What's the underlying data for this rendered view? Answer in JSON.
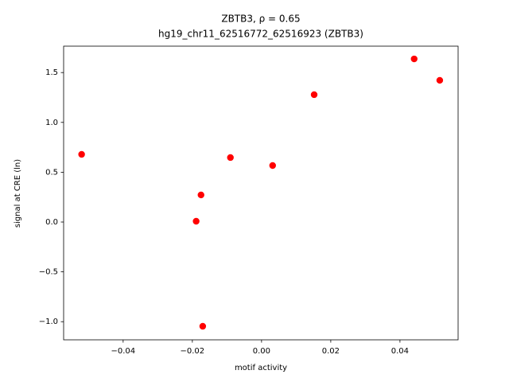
{
  "chart_data": {
    "type": "scatter",
    "title": "ZBTB3, ρ = 0.65",
    "subtitle": "hg19_chr11_62516772_62516923 (ZBTB3)",
    "x_label": "motif activity",
    "y_label": "signal at CRE (ln)",
    "color": "#ff0000",
    "grid": false,
    "x": [
      -0.052,
      -0.0189,
      -0.0175,
      -0.017,
      -0.009,
      0.0032,
      0.0152,
      0.0441,
      0.0515
    ],
    "values": [
      0.679,
      0.008,
      0.272,
      -1.046,
      0.647,
      0.567,
      1.278,
      1.637,
      1.422
    ],
    "xlim": [
      -0.0572,
      0.0568
    ],
    "ylim": [
      -1.182,
      1.765
    ],
    "xticks": [
      {
        "value": -0.04,
        "label": "−0.04"
      },
      {
        "value": -0.02,
        "label": "−0.02"
      },
      {
        "value": 0,
        "label": "0.00"
      },
      {
        "value": 0.02,
        "label": "0.02"
      },
      {
        "value": 0.04,
        "label": "0.04"
      }
    ],
    "yticks": [
      {
        "value": -1,
        "label": "−1.0"
      },
      {
        "value": -0.5,
        "label": "−0.5"
      },
      {
        "value": 0,
        "label": "0.0"
      },
      0.5,
      {
        "value": 1,
        "label": "1.0"
      },
      1.5
    ]
  }
}
